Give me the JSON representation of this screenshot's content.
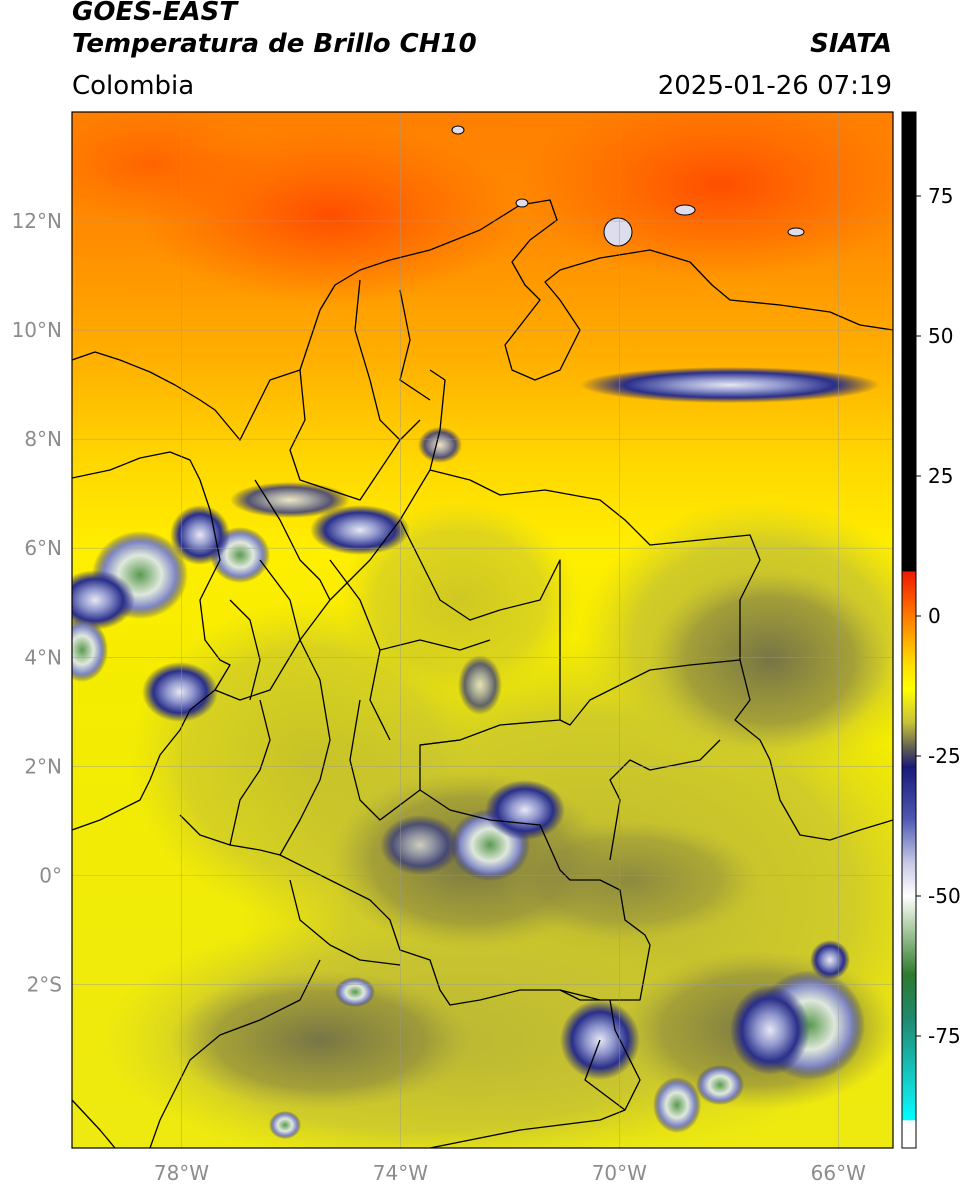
{
  "header": {
    "satellite": "GOES-EAST",
    "product": "Temperatura de Brillo CH10",
    "organization": "SIATA",
    "region": "Colombia",
    "timestamp": "2025-01-26 07:19"
  },
  "map": {
    "extent": {
      "lon": [
        -80.0,
        -65.0
      ],
      "lat": [
        -5.0,
        14.0
      ]
    },
    "lat_ticks": [
      {
        "value": 12,
        "label": "12°N"
      },
      {
        "value": 10,
        "label": "10°N"
      },
      {
        "value": 8,
        "label": "8°N"
      },
      {
        "value": 6,
        "label": "6°N"
      },
      {
        "value": 4,
        "label": "4°N"
      },
      {
        "value": 2,
        "label": "2°N"
      },
      {
        "value": 0,
        "label": "0°"
      },
      {
        "value": -2,
        "label": "2°S"
      }
    ],
    "lon_ticks": [
      {
        "value": -78,
        "label": "78°W"
      },
      {
        "value": -74,
        "label": "74°W"
      },
      {
        "value": -70,
        "label": "70°W"
      },
      {
        "value": -66,
        "label": "66°W"
      }
    ],
    "gridlines": true
  },
  "colorbar": {
    "range": [
      -95,
      90
    ],
    "ticks": [
      {
        "value": 75,
        "label": "75"
      },
      {
        "value": 50,
        "label": "50"
      },
      {
        "value": 25,
        "label": "25"
      },
      {
        "value": 0,
        "label": "0"
      },
      {
        "value": -25,
        "label": "-25"
      },
      {
        "value": -50,
        "label": "-50"
      },
      {
        "value": -75,
        "label": "-75"
      }
    ],
    "stops": [
      {
        "value": 90,
        "color": "#000000"
      },
      {
        "value": 8,
        "color": "#000000"
      },
      {
        "value": 7.9,
        "color": "#ee1a00"
      },
      {
        "value": 0,
        "color": "#ff7a00"
      },
      {
        "value": -8,
        "color": "#ffd800"
      },
      {
        "value": -13,
        "color": "#ffff00"
      },
      {
        "value": -19,
        "color": "#c6c23a"
      },
      {
        "value": -24,
        "color": "#565656"
      },
      {
        "value": -27,
        "color": "#1a1a7a"
      },
      {
        "value": -36,
        "color": "#4c56b0"
      },
      {
        "value": -44,
        "color": "#c6c8e6"
      },
      {
        "value": -50,
        "color": "#ffffff"
      },
      {
        "value": -56,
        "color": "#a9c9a0"
      },
      {
        "value": -64,
        "color": "#2e7a2e"
      },
      {
        "value": -72,
        "color": "#1e8a70"
      },
      {
        "value": -86,
        "color": "#10e2e2"
      },
      {
        "value": -90,
        "color": "#00ffff"
      },
      {
        "value": -90.1,
        "color": "#ffffff"
      },
      {
        "value": -95,
        "color": "#ffffff"
      }
    ]
  }
}
